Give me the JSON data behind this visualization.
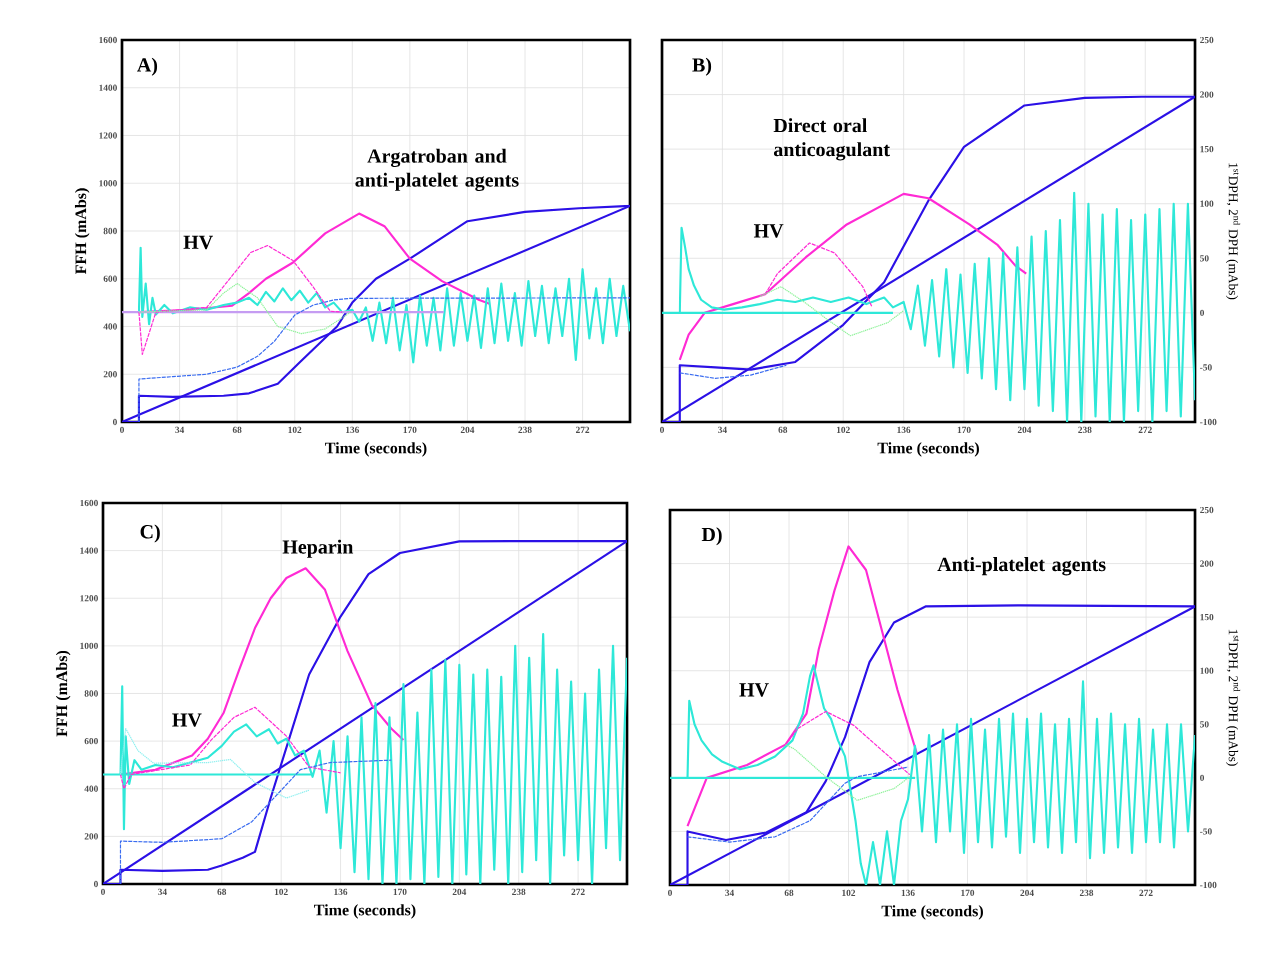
{
  "chart_data": [
    {
      "type": "line",
      "title": "A)",
      "xlabel": "Time (seconds)",
      "ylabel": "FFH (mAbs)",
      "xlim": [
        0,
        300
      ],
      "xticks": [
        0,
        34,
        68,
        102,
        136,
        170,
        204,
        238,
        272
      ],
      "ylim": [
        0,
        1600
      ],
      "yticks": [
        0,
        200,
        400,
        600,
        800,
        1000,
        1200,
        1400,
        1600
      ],
      "grid": true,
      "annotations": [
        "Argatroban and anti-platelet agents",
        "HV"
      ],
      "series": [
        {
          "color": "#2b10e6",
          "line_style": "solid",
          "x": [
            0,
            10,
            10,
            30,
            60,
            75,
            92,
            105,
            127,
            136,
            150,
            170,
            204,
            238,
            270,
            300
          ],
          "values": [
            0,
            0,
            110,
            105,
            110,
            120,
            160,
            250,
            400,
            500,
            600,
            684,
            841,
            880,
            895,
            905
          ]
        },
        {
          "color": "#2b10e6",
          "line_style": "solid",
          "x": [
            0,
            300
          ],
          "values": [
            0,
            905
          ]
        },
        {
          "color": "#3a6cf0",
          "line_style": "dashed",
          "x": [
            10,
            10,
            30,
            50,
            68,
            80,
            90,
            102,
            113,
            125,
            135,
            300
          ],
          "values": [
            0,
            180,
            190,
            200,
            230,
            275,
            338,
            448,
            490,
            511,
            518,
            520
          ]
        },
        {
          "color": "#ff2ad4",
          "line_style": "solid",
          "x": [
            10,
            40,
            65,
            75,
            85,
            101,
            120,
            140,
            155,
            170,
            189,
            211,
            217
          ],
          "values": [
            460,
            470,
            487,
            540,
            600,
            668,
            790,
            873,
            820,
            684,
            590,
            511,
            495
          ]
        },
        {
          "color": "#ff2ad4",
          "line_style": "dashed",
          "x": [
            10,
            12,
            20,
            50,
            66,
            76,
            86,
            101,
            112,
            123,
            130
          ],
          "values": [
            460,
            283,
            460,
            480,
            621,
            710,
            739,
            676,
            574,
            464,
            460
          ]
        },
        {
          "color": "#8ff29a",
          "line_style": "dotted",
          "x": [
            10,
            50,
            60,
            68,
            80,
            92,
            106,
            120,
            135
          ],
          "values": [
            460,
            470,
            540,
            580,
            520,
            400,
            370,
            390,
            460
          ]
        },
        {
          "color": "#2ee8d8",
          "line_style": "solid",
          "x": [
            10,
            11,
            12,
            14,
            16,
            18,
            20,
            25,
            30,
            40,
            50,
            60,
            68,
            75,
            80,
            85,
            90,
            95,
            100,
            105,
            110,
            115,
            120,
            125,
            130,
            136,
            140,
            144,
            148,
            152,
            156,
            160,
            164,
            168,
            172,
            176,
            180,
            184,
            188,
            192,
            196,
            200,
            204,
            208,
            212,
            216,
            220,
            224,
            228,
            232,
            236,
            240,
            244,
            248,
            252,
            256,
            260,
            264,
            268,
            272,
            276,
            280,
            284,
            288,
            292,
            296,
            300
          ],
          "values": [
            460,
            730,
            440,
            580,
            410,
            520,
            450,
            490,
            455,
            480,
            470,
            490,
            500,
            520,
            490,
            545,
            505,
            560,
            510,
            550,
            500,
            540,
            480,
            500,
            460,
            470,
            420,
            480,
            340,
            500,
            330,
            520,
            300,
            490,
            250,
            530,
            320,
            520,
            300,
            560,
            320,
            540,
            340,
            530,
            310,
            560,
            330,
            580,
            340,
            540,
            320,
            590,
            360,
            570,
            330,
            560,
            360,
            600,
            260,
            640,
            350,
            560,
            330,
            600,
            360,
            570,
            380
          ]
        },
        {
          "color": "#c59cf2",
          "line_style": "solid",
          "x": [
            0,
            190
          ],
          "values": [
            460,
            460
          ]
        }
      ]
    },
    {
      "type": "line",
      "title": "B)",
      "xlabel": "Time (seconds)",
      "y2label": "1$^{st}$DPH, 2$^{nd}$ DPH (mAbs)",
      "xlim": [
        0,
        300
      ],
      "xticks": [
        0,
        34,
        68,
        102,
        136,
        170,
        204,
        238,
        272
      ],
      "y2lim": [
        -100,
        250
      ],
      "y2ticks": [
        -100,
        -50,
        0,
        50,
        100,
        150,
        200,
        250
      ],
      "grid": true,
      "annotations": [
        "Direct oral anticoagulant",
        "HV"
      ],
      "series": [
        {
          "axis": "y2",
          "color": "#2b10e6",
          "line_style": "solid",
          "x": [
            0,
            10,
            10,
            30,
            50,
            75,
            102,
            125,
            150,
            170,
            204,
            238,
            270,
            300
          ],
          "values": [
            -100,
            -100,
            -48,
            -50,
            -52,
            -45,
            -11,
            28,
            103,
            152,
            190,
            197,
            198,
            198
          ]
        },
        {
          "axis": "y2",
          "color": "#2b10e6",
          "line_style": "solid",
          "x": [
            0,
            300
          ],
          "values": [
            -100,
            198
          ]
        },
        {
          "axis": "y2",
          "color": "#3a6cf0",
          "line_style": "dashed",
          "x": [
            10,
            30,
            50,
            70
          ],
          "values": [
            -55,
            -60,
            -57,
            -48
          ]
        },
        {
          "axis": "y2",
          "color": "#ff2ad4",
          "line_style": "solid",
          "x": [
            10,
            15,
            24,
            40,
            58,
            81,
            104,
            136,
            150,
            173,
            189,
            199,
            205
          ],
          "values": [
            -43,
            -20,
            0,
            8,
            17,
            51,
            81,
            109,
            105,
            81,
            62,
            43,
            36
          ]
        },
        {
          "axis": "y2",
          "color": "#ff2ad4",
          "line_style": "dashed",
          "x": [
            58,
            65,
            83,
            97,
            113,
            118
          ],
          "values": [
            17,
            36,
            64,
            55,
            24,
            6
          ]
        },
        {
          "axis": "y2",
          "color": "#8ff29a",
          "line_style": "dotted",
          "x": [
            55,
            67,
            80,
            93,
            106,
            127,
            136
          ],
          "values": [
            15,
            24,
            10,
            -6,
            -21,
            -9,
            2
          ]
        },
        {
          "axis": "y2",
          "color": "#2ee8d8",
          "line_style": "solid",
          "x": [
            10,
            11,
            13,
            15,
            18,
            22,
            28,
            35,
            45,
            55,
            65,
            75,
            85,
            95,
            105,
            115,
            125,
            130,
            136,
            140,
            144,
            148,
            152,
            156,
            160,
            164,
            168,
            172,
            176,
            180,
            184,
            188,
            192,
            196,
            200,
            204,
            208,
            212,
            216,
            220,
            224,
            228,
            232,
            236,
            240,
            244,
            248,
            252,
            256,
            260,
            264,
            268,
            272,
            276,
            280,
            284,
            288,
            292,
            296,
            300
          ],
          "values": [
            0,
            78,
            60,
            40,
            25,
            12,
            5,
            3,
            5,
            8,
            12,
            10,
            14,
            10,
            14,
            8,
            14,
            5,
            10,
            -15,
            25,
            -30,
            30,
            -40,
            40,
            -50,
            35,
            -55,
            45,
            -60,
            50,
            -70,
            55,
            -80,
            60,
            -70,
            70,
            -85,
            75,
            -90,
            85,
            -100,
            110,
            -100,
            100,
            -95,
            90,
            -100,
            95,
            -100,
            85,
            -90,
            90,
            -100,
            95,
            -90,
            100,
            -95,
            100,
            -80
          ]
        },
        {
          "axis": "y2",
          "color": "#2ee8d8",
          "line_style": "solid",
          "x": [
            0,
            130
          ],
          "values": [
            0,
            0
          ]
        }
      ]
    },
    {
      "type": "line",
      "title": "C)",
      "xlabel": "Time (seconds)",
      "ylabel": "FFH (mAbs)",
      "xlim": [
        0,
        300
      ],
      "xticks": [
        0,
        34,
        68,
        102,
        136,
        170,
        204,
        238,
        272
      ],
      "ylim": [
        0,
        1600
      ],
      "yticks": [
        0,
        200,
        400,
        600,
        800,
        1000,
        1200,
        1400,
        1600
      ],
      "grid": true,
      "annotations": [
        "Heparin",
        "HV"
      ],
      "series": [
        {
          "color": "#2b10e6",
          "line_style": "solid",
          "x": [
            0,
            10,
            10,
            34,
            60,
            68,
            80,
            87,
            96,
            107,
            118,
            136,
            152,
            170,
            204,
            238,
            300
          ],
          "values": [
            0,
            0,
            60,
            55,
            60,
            78,
            110,
            135,
            361,
            620,
            880,
            1123,
            1301,
            1390,
            1439,
            1440,
            1440
          ]
        },
        {
          "color": "#2b10e6",
          "line_style": "solid",
          "x": [
            0,
            300
          ],
          "values": [
            0,
            1440
          ]
        },
        {
          "color": "#3a6cf0",
          "line_style": "dashed",
          "x": [
            10,
            10,
            34,
            68,
            85,
            100,
            113,
            130,
            165
          ],
          "values": [
            0,
            180,
            175,
            190,
            260,
            378,
            480,
            510,
            520
          ]
        },
        {
          "color": "#ff2ad4",
          "line_style": "solid",
          "x": [
            10,
            30,
            51,
            60,
            69,
            78,
            87,
            96,
            105,
            116,
            127,
            140,
            154,
            165,
            172
          ],
          "values": [
            460,
            480,
            540,
            610,
            718,
            900,
            1075,
            1200,
            1285,
            1326,
            1237,
            978,
            750,
            653,
            605
          ]
        },
        {
          "color": "#ff2ad4",
          "line_style": "dashed",
          "x": [
            10,
            12,
            16,
            50,
            62,
            75,
            87,
            105,
            118,
            136
          ],
          "values": [
            460,
            400,
            460,
            500,
            605,
            700,
            742,
            621,
            491,
            467
          ]
        },
        {
          "color": "#8ff0f0",
          "line_style": "dotted",
          "x": [
            10,
            13,
            20,
            29,
            60,
            73,
            87,
            105,
            118
          ],
          "values": [
            460,
            653,
            560,
            507,
            510,
            523,
            426,
            361,
            394
          ]
        },
        {
          "color": "#2ee8d8",
          "line_style": "solid",
          "x": [
            10,
            11,
            12,
            13,
            15,
            18,
            22,
            30,
            40,
            50,
            60,
            68,
            75,
            82,
            88,
            95,
            100,
            105,
            110,
            115,
            120,
            124,
            128,
            132,
            136,
            140,
            144,
            148,
            152,
            156,
            160,
            164,
            168,
            172,
            176,
            180,
            184,
            188,
            192,
            196,
            200,
            204,
            208,
            212,
            216,
            220,
            224,
            228,
            232,
            236,
            240,
            244,
            248,
            252,
            256,
            260,
            264,
            268,
            272,
            276,
            280,
            284,
            288,
            292,
            296,
            300
          ],
          "values": [
            460,
            830,
            230,
            620,
            420,
            520,
            480,
            500,
            490,
            510,
            530,
            580,
            640,
            670,
            620,
            650,
            590,
            610,
            540,
            560,
            450,
            560,
            300,
            600,
            150,
            620,
            50,
            700,
            20,
            760,
            0,
            700,
            0,
            840,
            20,
            720,
            0,
            900,
            30,
            940,
            0,
            920,
            40,
            880,
            0,
            900,
            60,
            870,
            0,
            1000,
            50,
            950,
            100,
            1050,
            0,
            900,
            120,
            850,
            100,
            800,
            0,
            900,
            150,
            1000,
            100,
            950
          ]
        },
        {
          "color": "#2ee8d8",
          "line_style": "solid",
          "x": [
            0,
            120
          ],
          "values": [
            460,
            460
          ]
        }
      ]
    },
    {
      "type": "line",
      "title": "D)",
      "xlabel": "Time (seconds)",
      "y2label": "1$^{st}$DPH, 2$^{nd}$ DPH (mAbs)",
      "xlim": [
        0,
        300
      ],
      "xticks": [
        0,
        34,
        68,
        102,
        136,
        170,
        204,
        238,
        272
      ],
      "y2lim": [
        -100,
        250
      ],
      "y2ticks": [
        -100,
        -50,
        0,
        50,
        100,
        150,
        200,
        250
      ],
      "grid": true,
      "annotations": [
        "Anti-platelet agents",
        "HV"
      ],
      "series": [
        {
          "axis": "y2",
          "color": "#2b10e6",
          "line_style": "solid",
          "x": [
            0,
            10,
            10,
            32,
            55,
            78,
            89,
            100,
            114,
            128,
            146,
            200,
            300
          ],
          "values": [
            -100,
            -100,
            -50,
            -58,
            -51,
            -32,
            -3,
            38,
            108,
            145,
            160,
            161,
            160
          ]
        },
        {
          "axis": "y2",
          "color": "#2b10e6",
          "line_style": "solid",
          "x": [
            0,
            300
          ],
          "values": [
            -100,
            160
          ]
        },
        {
          "axis": "y2",
          "color": "#3a6cf0",
          "line_style": "dashed",
          "x": [
            10,
            34,
            60,
            80,
            100,
            107,
            136
          ],
          "values": [
            -55,
            -60,
            -55,
            -40,
            -5,
            1,
            10
          ]
        },
        {
          "axis": "y2",
          "color": "#ff2ad4",
          "line_style": "solid",
          "x": [
            10,
            21,
            44,
            66,
            78,
            85,
            94,
            102,
            112,
            121,
            130,
            141
          ],
          "values": [
            -45,
            0,
            12,
            31,
            60,
            120,
            175,
            216,
            194,
            138,
            82,
            23
          ]
        },
        {
          "axis": "y2",
          "color": "#ff2ad4",
          "line_style": "dashed",
          "x": [
            66,
            73,
            89,
            105,
            123,
            137
          ],
          "values": [
            31,
            46,
            62,
            49,
            23,
            3
          ]
        },
        {
          "axis": "y2",
          "color": "#8ff29a",
          "line_style": "dotted",
          "x": [
            66,
            71,
            89,
            107,
            128,
            137
          ],
          "values": [
            31,
            27,
            1,
            -21,
            -10,
            1
          ]
        },
        {
          "axis": "y2",
          "color": "#2ee8d8",
          "line_style": "solid",
          "x": [
            10,
            11,
            14,
            18,
            24,
            30,
            40,
            50,
            60,
            70,
            76,
            80,
            82,
            85,
            88,
            92,
            96,
            100,
            103,
            106,
            109,
            112,
            116,
            120,
            124,
            128,
            132,
            136,
            140,
            144,
            148,
            152,
            156,
            160,
            164,
            168,
            172,
            176,
            180,
            184,
            188,
            192,
            196,
            200,
            204,
            208,
            212,
            216,
            220,
            224,
            228,
            232,
            236,
            240,
            244,
            248,
            252,
            256,
            260,
            264,
            268,
            272,
            276,
            280,
            284,
            288,
            292,
            296,
            300
          ],
          "values": [
            0,
            72,
            50,
            35,
            22,
            15,
            8,
            12,
            20,
            35,
            60,
            95,
            105,
            85,
            65,
            55,
            35,
            20,
            -10,
            -40,
            -80,
            -100,
            -60,
            -100,
            -50,
            -100,
            -40,
            -20,
            30,
            -50,
            40,
            -60,
            45,
            -50,
            50,
            -70,
            55,
            -60,
            45,
            -65,
            55,
            -55,
            60,
            -70,
            55,
            -60,
            60,
            -65,
            50,
            -70,
            55,
            -60,
            90,
            -75,
            55,
            -70,
            60,
            -65,
            50,
            -70,
            55,
            -60,
            45,
            -60,
            50,
            -65,
            50,
            -50,
            40
          ]
        },
        {
          "axis": "y2",
          "color": "#2ee8d8",
          "line_style": "solid",
          "x": [
            0,
            140
          ],
          "values": [
            0,
            0
          ]
        }
      ]
    }
  ]
}
